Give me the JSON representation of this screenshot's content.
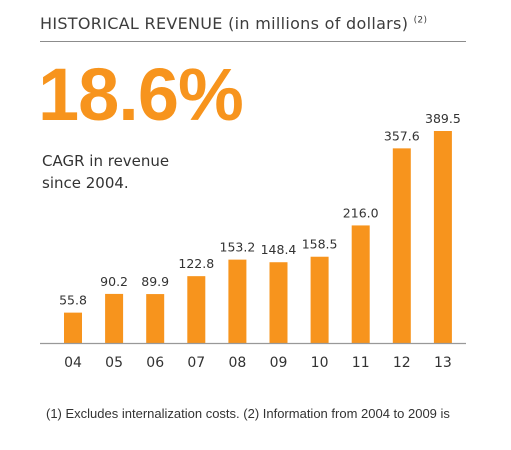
{
  "header": {
    "title_main": "HISTORICAL REVENUE",
    "title_paren": "(in millions of dollars)",
    "title_note": "(2)"
  },
  "highlight": {
    "value": "18.6%",
    "caption_line1": "CAGR in revenue",
    "caption_line2": "since 2004."
  },
  "footnote": "(1) Excludes internalization costs. (2) Information from 2004 to 2009 is",
  "colors": {
    "bar": "#f7941d",
    "accent": "#f7941d",
    "axis": "#999999",
    "text": "#333333"
  },
  "chart_data": {
    "type": "bar",
    "categories": [
      "04",
      "05",
      "06",
      "07",
      "08",
      "09",
      "10",
      "11",
      "12",
      "13"
    ],
    "values": [
      55.8,
      90.2,
      89.9,
      122.8,
      153.2,
      148.4,
      158.5,
      216.0,
      357.6,
      389.5
    ],
    "data_labels": [
      "55.8",
      "90.2",
      "89.9",
      "122.8",
      "153.2",
      "148.4",
      "158.5",
      "216.0",
      "357.6",
      "389.5"
    ],
    "title": "HISTORICAL REVENUE (in millions of dollars)",
    "xlabel": "",
    "ylabel": "",
    "ylim": [
      0,
      389.5
    ],
    "grid": false,
    "legend": "none"
  }
}
